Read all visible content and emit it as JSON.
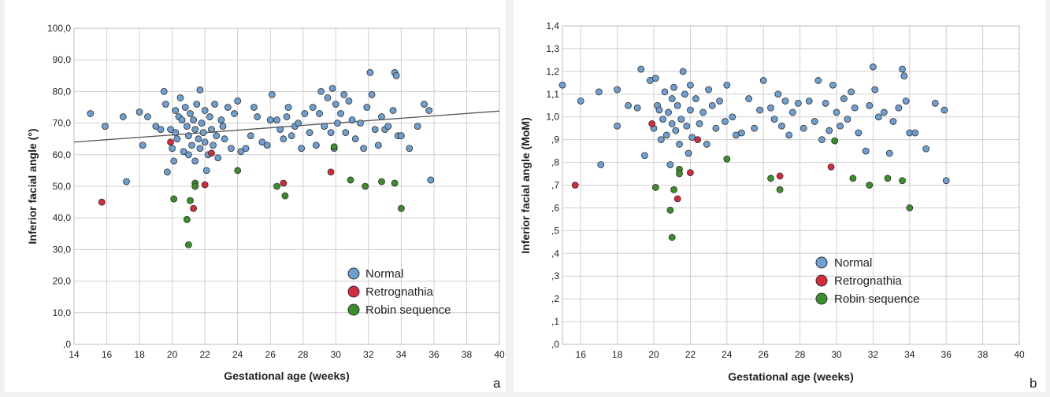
{
  "legend": {
    "normal": "Normal",
    "retrognathia": "Retrognathia",
    "robin": "Robin sequence"
  },
  "colors": {
    "normal": "#6e9fd0",
    "retrognathia": "#d42a3c",
    "robin": "#3b8f2a",
    "grid": "#cfcfcf",
    "regression": "#555555"
  },
  "chart_data": [
    {
      "type": "scatter",
      "panel_label": "a",
      "xlabel": "Gestational age (weeks)",
      "ylabel": "Inferior facial angle (°)",
      "xlim": [
        14,
        40
      ],
      "ylim": [
        0,
        100
      ],
      "x_ticks": [
        "14",
        "16",
        "18",
        "20",
        "22",
        "24",
        "26",
        "28",
        "30",
        "32",
        "34",
        "36",
        "38",
        "40"
      ],
      "y_ticks": [
        ",0",
        "10,0",
        "20,0",
        "30,0",
        "40,0",
        "50,0",
        "60,0",
        "70,0",
        "80,0",
        "90,0",
        "100,0"
      ],
      "grid": true,
      "legend_position": "bottom-right",
      "regression_line": {
        "x": [
          14,
          40
        ],
        "y": [
          64.0,
          73.8
        ]
      },
      "series": [
        {
          "name": "Normal",
          "points": [
            [
              15,
              73
            ],
            [
              15.9,
              69
            ],
            [
              17,
              72
            ],
            [
              17.2,
              51.5
            ],
            [
              18,
              73.5
            ],
            [
              18.2,
              63
            ],
            [
              18.5,
              72
            ],
            [
              19,
              69
            ],
            [
              19.3,
              68
            ],
            [
              19.5,
              80
            ],
            [
              19.6,
              76
            ],
            [
              19.7,
              54.5
            ],
            [
              19.9,
              68
            ],
            [
              20,
              62
            ],
            [
              20.1,
              58
            ],
            [
              20.2,
              74
            ],
            [
              20.2,
              67
            ],
            [
              20.3,
              65
            ],
            [
              20.4,
              72
            ],
            [
              20.5,
              78
            ],
            [
              20.6,
              71
            ],
            [
              20.7,
              61
            ],
            [
              20.8,
              75
            ],
            [
              20.9,
              69
            ],
            [
              21,
              66
            ],
            [
              21,
              60
            ],
            [
              21.1,
              73
            ],
            [
              21.2,
              63
            ],
            [
              21.3,
              71
            ],
            [
              21.4,
              68
            ],
            [
              21.4,
              58
            ],
            [
              21.5,
              76
            ],
            [
              21.6,
              65
            ],
            [
              21.7,
              62
            ],
            [
              21.7,
              80.5
            ],
            [
              21.8,
              70
            ],
            [
              21.9,
              67
            ],
            [
              22,
              64
            ],
            [
              22,
              74
            ],
            [
              22.1,
              55
            ],
            [
              22.2,
              60
            ],
            [
              22.3,
              72
            ],
            [
              22.4,
              68
            ],
            [
              22.5,
              63
            ],
            [
              22.6,
              76
            ],
            [
              22.7,
              66
            ],
            [
              22.8,
              59
            ],
            [
              23,
              71
            ],
            [
              23.1,
              69
            ],
            [
              23.2,
              65
            ],
            [
              23.4,
              75
            ],
            [
              23.6,
              62
            ],
            [
              23.8,
              73
            ],
            [
              24,
              77
            ],
            [
              24.2,
              61
            ],
            [
              24.5,
              62
            ],
            [
              24.8,
              66
            ],
            [
              25,
              75
            ],
            [
              25.2,
              72
            ],
            [
              25.5,
              64
            ],
            [
              25.8,
              63
            ],
            [
              26,
              71
            ],
            [
              26.1,
              79
            ],
            [
              26.4,
              71
            ],
            [
              26.6,
              68
            ],
            [
              26.8,
              65
            ],
            [
              27,
              72
            ],
            [
              27.1,
              75
            ],
            [
              27.3,
              66
            ],
            [
              27.5,
              69
            ],
            [
              27.7,
              70
            ],
            [
              27.9,
              62
            ],
            [
              28.1,
              73
            ],
            [
              28.4,
              67
            ],
            [
              28.6,
              75
            ],
            [
              28.8,
              63
            ],
            [
              29,
              73
            ],
            [
              29.1,
              80
            ],
            [
              29.3,
              69
            ],
            [
              29.5,
              78
            ],
            [
              29.7,
              67
            ],
            [
              29.8,
              81
            ],
            [
              29.9,
              62
            ],
            [
              30,
              76
            ],
            [
              30.1,
              70
            ],
            [
              30.3,
              73
            ],
            [
              30.5,
              79
            ],
            [
              30.6,
              67
            ],
            [
              30.8,
              77
            ],
            [
              31,
              71
            ],
            [
              31.2,
              65
            ],
            [
              31.5,
              70
            ],
            [
              31.7,
              62
            ],
            [
              31.9,
              75
            ],
            [
              32.1,
              86
            ],
            [
              32.2,
              79
            ],
            [
              32.4,
              68
            ],
            [
              32.6,
              63
            ],
            [
              32.8,
              72
            ],
            [
              33,
              68
            ],
            [
              33.2,
              69
            ],
            [
              33.5,
              74
            ],
            [
              33.6,
              86
            ],
            [
              33.7,
              85
            ],
            [
              33.8,
              66
            ],
            [
              34,
              66
            ],
            [
              34.5,
              62
            ],
            [
              35,
              69
            ],
            [
              35.4,
              76
            ],
            [
              35.7,
              74
            ],
            [
              35.8,
              52
            ]
          ]
        },
        {
          "name": "Retrognathia",
          "points": [
            [
              15.7,
              45
            ],
            [
              19.9,
              64
            ],
            [
              21.3,
              43
            ],
            [
              22,
              50.5
            ],
            [
              22.4,
              60.5
            ],
            [
              26.8,
              51
            ],
            [
              29.7,
              54.5
            ]
          ]
        },
        {
          "name": "Robin sequence",
          "points": [
            [
              20.1,
              46
            ],
            [
              20.9,
              39.5
            ],
            [
              21.1,
              45.5
            ],
            [
              21,
              31.5
            ],
            [
              21.4,
              51
            ],
            [
              21.4,
              50
            ],
            [
              24,
              55
            ],
            [
              26.4,
              50
            ],
            [
              26.9,
              47
            ],
            [
              29.9,
              62.5
            ],
            [
              30.9,
              52
            ],
            [
              31.8,
              50
            ],
            [
              32.8,
              51.5
            ],
            [
              33.6,
              51
            ],
            [
              34,
              43
            ]
          ]
        }
      ]
    },
    {
      "type": "scatter",
      "panel_label": "b",
      "xlabel": "Gestational age (weeks)",
      "ylabel": "Inferior facial angle (MoM)",
      "xlim": [
        15,
        40
      ],
      "ylim": [
        0,
        1.4
      ],
      "x_ticks": [
        "16",
        "18",
        "20",
        "22",
        "24",
        "26",
        "28",
        "30",
        "32",
        "34",
        "36",
        "38",
        "40"
      ],
      "y_ticks": [
        ",0",
        ",1",
        ",2",
        ",3",
        ",4",
        ",5",
        ",6",
        ",7",
        ",8",
        ",9",
        "1,0",
        "1,1",
        "1,2",
        "1,3",
        "1,4"
      ],
      "grid": true,
      "legend_position": "bottom-center",
      "series": [
        {
          "name": "Normal",
          "points": [
            [
              15,
              1.14
            ],
            [
              16,
              1.07
            ],
            [
              17.1,
              0.79
            ],
            [
              17,
              1.11
            ],
            [
              18,
              1.12
            ],
            [
              18,
              0.96
            ],
            [
              18.6,
              1.05
            ],
            [
              19.1,
              1.04
            ],
            [
              19.3,
              1.21
            ],
            [
              19.8,
              1.16
            ],
            [
              19.5,
              0.83
            ],
            [
              20,
              0.95
            ],
            [
              20.1,
              1.17
            ],
            [
              20.2,
              1.05
            ],
            [
              20.3,
              1.03
            ],
            [
              20.4,
              0.9
            ],
            [
              20.5,
              0.99
            ],
            [
              20.6,
              1.11
            ],
            [
              20.7,
              0.92
            ],
            [
              20.8,
              1.02
            ],
            [
              20.9,
              0.79
            ],
            [
              21,
              1.08
            ],
            [
              21,
              0.97
            ],
            [
              21.1,
              1.13
            ],
            [
              21.2,
              0.94
            ],
            [
              21.3,
              1.05
            ],
            [
              21.4,
              0.88
            ],
            [
              21.5,
              0.99
            ],
            [
              21.6,
              1.2
            ],
            [
              21.7,
              1.1
            ],
            [
              21.8,
              0.96
            ],
            [
              21.9,
              0.84
            ],
            [
              22,
              1.14
            ],
            [
              22,
              1.03
            ],
            [
              22.1,
              0.91
            ],
            [
              22.3,
              1.08
            ],
            [
              22.5,
              0.97
            ],
            [
              22.7,
              1.02
            ],
            [
              22.9,
              0.88
            ],
            [
              23,
              1.12
            ],
            [
              23.2,
              1.05
            ],
            [
              23.4,
              0.95
            ],
            [
              23.6,
              1.07
            ],
            [
              23.9,
              0.98
            ],
            [
              24,
              1.14
            ],
            [
              24.3,
              1.0
            ],
            [
              24.5,
              0.92
            ],
            [
              24.8,
              0.93
            ],
            [
              25.2,
              1.08
            ],
            [
              25.5,
              0.95
            ],
            [
              25.8,
              1.03
            ],
            [
              26,
              1.16
            ],
            [
              26.4,
              1.04
            ],
            [
              26.6,
              0.99
            ],
            [
              26.8,
              1.1
            ],
            [
              27,
              0.96
            ],
            [
              27.2,
              1.07
            ],
            [
              27.4,
              0.92
            ],
            [
              27.6,
              1.02
            ],
            [
              27.9,
              1.06
            ],
            [
              28.2,
              0.95
            ],
            [
              28.5,
              1.07
            ],
            [
              28.8,
              0.98
            ],
            [
              29,
              1.16
            ],
            [
              29.2,
              0.9
            ],
            [
              29.4,
              1.06
            ],
            [
              29.6,
              0.94
            ],
            [
              29.8,
              1.14
            ],
            [
              30,
              1.02
            ],
            [
              30.2,
              0.96
            ],
            [
              30.4,
              1.08
            ],
            [
              30.6,
              0.99
            ],
            [
              30.8,
              1.11
            ],
            [
              31,
              1.04
            ],
            [
              31.2,
              0.93
            ],
            [
              31.6,
              0.85
            ],
            [
              31.8,
              1.05
            ],
            [
              32,
              1.22
            ],
            [
              32.1,
              1.12
            ],
            [
              32.3,
              1.0
            ],
            [
              32.6,
              1.02
            ],
            [
              32.9,
              0.84
            ],
            [
              33.1,
              0.98
            ],
            [
              33.4,
              1.04
            ],
            [
              33.6,
              1.21
            ],
            [
              33.7,
              1.18
            ],
            [
              33.8,
              1.07
            ],
            [
              34,
              0.93
            ],
            [
              34.3,
              0.93
            ],
            [
              34.9,
              0.86
            ],
            [
              35.4,
              1.06
            ],
            [
              35.9,
              1.03
            ],
            [
              36,
              0.72
            ]
          ]
        },
        {
          "name": "Retrognathia",
          "points": [
            [
              15.7,
              0.7
            ],
            [
              19.9,
              0.97
            ],
            [
              21.3,
              0.64
            ],
            [
              22,
              0.755
            ],
            [
              22.4,
              0.9
            ],
            [
              26.9,
              0.74
            ],
            [
              29.7,
              0.78
            ]
          ]
        },
        {
          "name": "Robin sequence",
          "points": [
            [
              20.1,
              0.69
            ],
            [
              20.9,
              0.59
            ],
            [
              21.1,
              0.68
            ],
            [
              21,
              0.47
            ],
            [
              21.4,
              0.77
            ],
            [
              21.4,
              0.75
            ],
            [
              24,
              0.815
            ],
            [
              26.4,
              0.73
            ],
            [
              26.9,
              0.68
            ],
            [
              29.9,
              0.895
            ],
            [
              30.9,
              0.73
            ],
            [
              31.8,
              0.7
            ],
            [
              32.8,
              0.73
            ],
            [
              33.6,
              0.72
            ],
            [
              34,
              0.6
            ]
          ]
        }
      ]
    }
  ]
}
